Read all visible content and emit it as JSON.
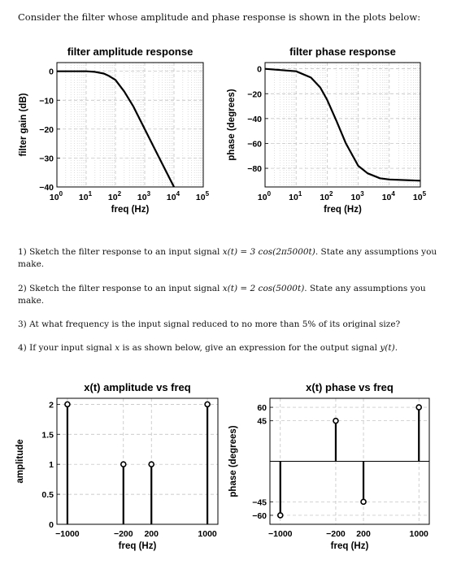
{
  "intro": "Consider the filter whose amplitude and phase response is shown in the plots below:",
  "questions": [
    {
      "pre": "1) Sketch the filter response to an input signal ",
      "math": "x(t) = 3 cos(2π5000t)",
      "post": ". State any assumptions you make."
    },
    {
      "pre": "2) Sketch the filter response to an input signal ",
      "math": "x(t) = 2 cos(5000t)",
      "post": ". State any assumptions you make."
    },
    {
      "pre": "3) At what frequency is the input signal reduced to no more than 5% of its original size?",
      "math": "",
      "post": ""
    },
    {
      "pre": "4) If your input signal ",
      "math": "x",
      "post": " is as shown below, give an expression for the output signal ",
      "math2": "y(t)",
      "post2": "."
    }
  ],
  "chart_data": [
    {
      "type": "line",
      "title": "filter amplitude response",
      "xlabel": "freq (Hz)",
      "ylabel": "filter gain (dB)",
      "xscale": "log",
      "xlim": [
        1,
        100000
      ],
      "ylim": [
        -40,
        3
      ],
      "xticks": [
        "10^0",
        "10^1",
        "10^2",
        "10^3",
        "10^4",
        "10^5"
      ],
      "yticks": [
        0,
        -10,
        -20,
        -30,
        -40
      ],
      "grid": true,
      "x": [
        1,
        10,
        20,
        40,
        60,
        100,
        200,
        400,
        1000,
        2000,
        5000,
        10000
      ],
      "y": [
        0,
        0,
        -0.2,
        -0.8,
        -1.6,
        -3.0,
        -7.0,
        -12.0,
        -20.0,
        -26.0,
        -34.0,
        -40.0
      ]
    },
    {
      "type": "line",
      "title": "filter phase response",
      "xlabel": "freq (Hz)",
      "ylabel": "phase (degrees)",
      "xscale": "log",
      "xlim": [
        1,
        100000
      ],
      "ylim": [
        -95,
        5
      ],
      "xticks": [
        "10^0",
        "10^1",
        "10^2",
        "10^3",
        "10^4",
        "10^5"
      ],
      "yticks": [
        0,
        -20,
        -40,
        -60,
        -80
      ],
      "grid": true,
      "x": [
        1,
        10,
        30,
        60,
        100,
        200,
        400,
        1000,
        2000,
        5000,
        10000,
        100000
      ],
      "y": [
        0,
        -2,
        -7,
        -15,
        -25,
        -42,
        -60,
        -78,
        -84,
        -88,
        -89,
        -90
      ]
    },
    {
      "type": "stem",
      "title": "x(t) amplitude vs freq",
      "xlabel": "freq (Hz)",
      "ylabel": "amplitude",
      "xlim": [
        -1150,
        1150
      ],
      "ylim": [
        0,
        2.1
      ],
      "xticks": [
        -1000,
        -200,
        200,
        1000
      ],
      "yticks": [
        0,
        0.5,
        1,
        1.5,
        2
      ],
      "ytick_labels": [
        "0",
        "0.5",
        "1",
        "1.5",
        "2"
      ],
      "grid": true,
      "x": [
        -1000,
        -200,
        200,
        1000
      ],
      "y": [
        2,
        1,
        1,
        2
      ]
    },
    {
      "type": "stem",
      "title": "x(t) phase vs freq",
      "xlabel": "freq (Hz)",
      "ylabel": "phase (degrees)",
      "xlim": [
        -1150,
        1150
      ],
      "ylim": [
        -70,
        70
      ],
      "xticks": [
        -1000,
        -200,
        200,
        1000
      ],
      "yticks": [
        60,
        45,
        -45,
        -60
      ],
      "ytick_labels": [
        "60",
        "45",
        "−45",
        "−60"
      ],
      "grid": true,
      "x": [
        -1000,
        -200,
        200,
        1000
      ],
      "y": [
        -60,
        45,
        -45,
        60
      ]
    }
  ]
}
